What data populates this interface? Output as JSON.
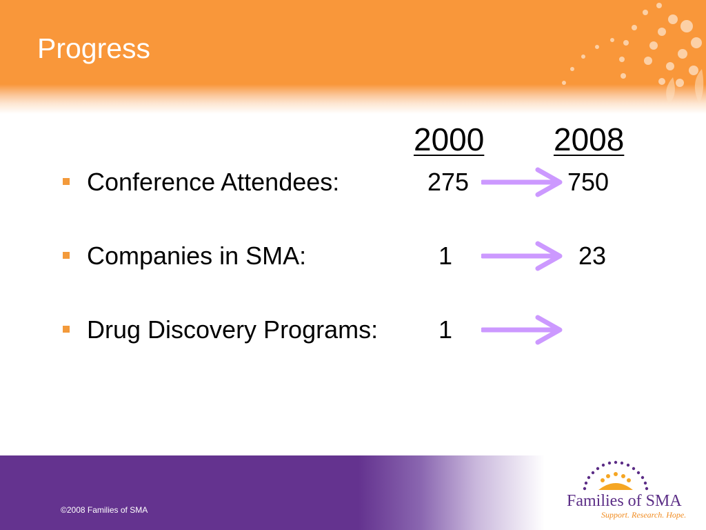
{
  "slide": {
    "title": "Progress"
  },
  "columns": {
    "year_start": "2000",
    "year_end": "2008"
  },
  "rows": [
    {
      "label": "Conference Attendees:",
      "value_2000": "275",
      "value_2008": "750"
    },
    {
      "label": "Companies in SMA:",
      "value_2000": "1",
      "value_2008": "23"
    },
    {
      "label": "Drug Discovery Programs:",
      "value_2000": "1",
      "value_2008": ""
    }
  ],
  "footer": {
    "copyright": "©2008 Families of SMA"
  },
  "logo": {
    "name": "Families of SMA",
    "tagline": "Support. Research. Hope."
  },
  "colors": {
    "header_orange": "#f9973a",
    "footer_purple": "#64338f",
    "bullet_orange": "#f39a3b",
    "arrow_lavender": "#cc99ff"
  }
}
